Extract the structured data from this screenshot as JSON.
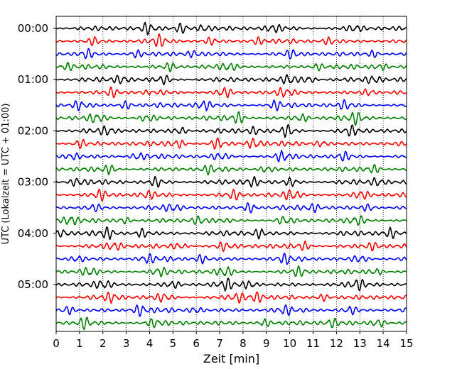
{
  "chart_data": {
    "type": "line",
    "title": "",
    "xlabel": "Zeit  [min]",
    "ylabel": "UTC (Lokalzeit = UTC + 01:00)",
    "xlim": [
      0,
      15
    ],
    "x_ticks": [
      "0",
      "1",
      "2",
      "3",
      "4",
      "5",
      "6",
      "7",
      "8",
      "9",
      "10",
      "11",
      "12",
      "13",
      "14",
      "15"
    ],
    "y_ticks": [
      "00:00",
      "01:00",
      "02:00",
      "03:00",
      "04:00",
      "05:00"
    ],
    "grid": {
      "x": true,
      "y": false,
      "style": "dotted"
    },
    "trace_interval_min": 15,
    "trace_colors": [
      "#000000",
      "#ff0000",
      "#0000ff",
      "#008000"
    ],
    "series": [
      {
        "start": "00:00",
        "color": "#000000",
        "amplitude": 0.42,
        "bursts": [
          {
            "x": 3.9,
            "a": 1.0
          },
          {
            "x": 5.4,
            "a": 1.2
          },
          {
            "x": 6.3,
            "a": 0.9
          },
          {
            "x": 9.3,
            "a": 0.8
          },
          {
            "x": 12.8,
            "a": 0.7
          }
        ]
      },
      {
        "start": "00:15",
        "color": "#ff0000",
        "amplitude": 0.4,
        "bursts": [
          {
            "x": 1.6,
            "a": 0.8
          },
          {
            "x": 4.4,
            "a": 1.1
          },
          {
            "x": 6.6,
            "a": 0.7
          },
          {
            "x": 8.6,
            "a": 0.8
          },
          {
            "x": 11.7,
            "a": 0.8
          }
        ]
      },
      {
        "start": "00:30",
        "color": "#0000ff",
        "amplitude": 0.4,
        "bursts": [
          {
            "x": 1.3,
            "a": 0.9
          },
          {
            "x": 3.4,
            "a": 0.9
          },
          {
            "x": 5.9,
            "a": 0.7
          },
          {
            "x": 10.1,
            "a": 0.8
          },
          {
            "x": 13.6,
            "a": 0.8
          }
        ]
      },
      {
        "start": "00:45",
        "color": "#008000",
        "amplitude": 0.4,
        "bursts": [
          {
            "x": 0.5,
            "a": 0.7
          },
          {
            "x": 4.9,
            "a": 0.9
          },
          {
            "x": 7.4,
            "a": 0.8
          },
          {
            "x": 11.2,
            "a": 0.7
          },
          {
            "x": 13.9,
            "a": 0.8
          }
        ]
      },
      {
        "start": "01:00",
        "color": "#000000",
        "amplitude": 0.42,
        "bursts": [
          {
            "x": 2.8,
            "a": 1.0
          },
          {
            "x": 4.6,
            "a": 0.8
          },
          {
            "x": 10.0,
            "a": 1.1
          },
          {
            "x": 10.8,
            "a": 1.0
          },
          {
            "x": 13.6,
            "a": 0.9
          }
        ]
      },
      {
        "start": "01:15",
        "color": "#ff0000",
        "amplitude": 0.42,
        "bursts": [
          {
            "x": 2.4,
            "a": 1.0
          },
          {
            "x": 7.2,
            "a": 1.1
          },
          {
            "x": 9.8,
            "a": 0.8
          },
          {
            "x": 13.4,
            "a": 0.8
          }
        ]
      },
      {
        "start": "01:30",
        "color": "#0000ff",
        "amplitude": 0.42,
        "bursts": [
          {
            "x": 1.0,
            "a": 1.0
          },
          {
            "x": 3.0,
            "a": 0.9
          },
          {
            "x": 6.3,
            "a": 1.2
          },
          {
            "x": 9.4,
            "a": 0.9
          },
          {
            "x": 12.4,
            "a": 0.8
          }
        ]
      },
      {
        "start": "01:45",
        "color": "#008000",
        "amplitude": 0.42,
        "bursts": [
          {
            "x": 1.7,
            "a": 0.9
          },
          {
            "x": 3.9,
            "a": 0.9
          },
          {
            "x": 7.8,
            "a": 1.0
          },
          {
            "x": 10.5,
            "a": 0.8
          },
          {
            "x": 12.8,
            "a": 1.0
          }
        ]
      },
      {
        "start": "02:00",
        "color": "#000000",
        "amplitude": 0.42,
        "bursts": [
          {
            "x": 2.2,
            "a": 0.8
          },
          {
            "x": 5.3,
            "a": 0.9
          },
          {
            "x": 8.5,
            "a": 0.7
          },
          {
            "x": 9.9,
            "a": 1.1
          },
          {
            "x": 12.6,
            "a": 0.9
          }
        ]
      },
      {
        "start": "02:15",
        "color": "#ff0000",
        "amplitude": 0.42,
        "bursts": [
          {
            "x": 1.0,
            "a": 0.9
          },
          {
            "x": 5.2,
            "a": 1.0
          },
          {
            "x": 6.9,
            "a": 1.1
          },
          {
            "x": 8.5,
            "a": 1.2
          },
          {
            "x": 11.4,
            "a": 0.8
          }
        ]
      },
      {
        "start": "02:30",
        "color": "#0000ff",
        "amplitude": 0.42,
        "bursts": [
          {
            "x": 0.7,
            "a": 0.8
          },
          {
            "x": 3.5,
            "a": 0.9
          },
          {
            "x": 7.0,
            "a": 0.8
          },
          {
            "x": 9.7,
            "a": 1.0
          },
          {
            "x": 12.3,
            "a": 0.8
          }
        ]
      },
      {
        "start": "02:45",
        "color": "#008000",
        "amplitude": 0.4,
        "bursts": [
          {
            "x": 2.3,
            "a": 0.9
          },
          {
            "x": 6.5,
            "a": 0.8
          },
          {
            "x": 9.0,
            "a": 0.9
          },
          {
            "x": 13.6,
            "a": 0.9
          }
        ]
      },
      {
        "start": "03:00",
        "color": "#000000",
        "amplitude": 0.42,
        "bursts": [
          {
            "x": 0.9,
            "a": 0.9
          },
          {
            "x": 4.3,
            "a": 0.9
          },
          {
            "x": 8.4,
            "a": 1.1
          },
          {
            "x": 10.1,
            "a": 0.8
          },
          {
            "x": 13.8,
            "a": 0.9
          }
        ]
      },
      {
        "start": "03:15",
        "color": "#ff0000",
        "amplitude": 0.42,
        "bursts": [
          {
            "x": 1.9,
            "a": 1.0
          },
          {
            "x": 3.9,
            "a": 0.8
          },
          {
            "x": 7.6,
            "a": 0.9
          },
          {
            "x": 10.1,
            "a": 1.1
          },
          {
            "x": 13.1,
            "a": 1.0
          }
        ]
      },
      {
        "start": "03:30",
        "color": "#0000ff",
        "amplitude": 0.42,
        "bursts": [
          {
            "x": 1.6,
            "a": 0.8
          },
          {
            "x": 5.0,
            "a": 0.8
          },
          {
            "x": 8.3,
            "a": 1.1
          },
          {
            "x": 11.0,
            "a": 0.8
          },
          {
            "x": 13.4,
            "a": 0.8
          }
        ]
      },
      {
        "start": "03:45",
        "color": "#008000",
        "amplitude": 0.42,
        "bursts": [
          {
            "x": 0.6,
            "a": 1.2
          },
          {
            "x": 2.9,
            "a": 0.8
          },
          {
            "x": 6.1,
            "a": 0.8
          },
          {
            "x": 9.8,
            "a": 0.9
          },
          {
            "x": 12.9,
            "a": 0.8
          }
        ]
      },
      {
        "start": "04:00",
        "color": "#000000",
        "amplitude": 0.42,
        "bursts": [
          {
            "x": 0.3,
            "a": 0.9
          },
          {
            "x": 2.2,
            "a": 1.0
          },
          {
            "x": 3.7,
            "a": 0.9
          },
          {
            "x": 8.7,
            "a": 1.0
          },
          {
            "x": 14.3,
            "a": 1.1
          }
        ]
      },
      {
        "start": "04:15",
        "color": "#ff0000",
        "amplitude": 0.42,
        "bursts": [
          {
            "x": 2.5,
            "a": 0.9
          },
          {
            "x": 5.3,
            "a": 0.8
          },
          {
            "x": 7.2,
            "a": 0.8
          },
          {
            "x": 10.6,
            "a": 0.8
          },
          {
            "x": 13.6,
            "a": 0.8
          }
        ]
      },
      {
        "start": "04:30",
        "color": "#0000ff",
        "amplitude": 0.42,
        "bursts": [
          {
            "x": 0.9,
            "a": 0.8
          },
          {
            "x": 3.9,
            "a": 0.9
          },
          {
            "x": 6.2,
            "a": 0.9
          },
          {
            "x": 9.8,
            "a": 0.8
          },
          {
            "x": 13.0,
            "a": 0.8
          }
        ]
      },
      {
        "start": "04:45",
        "color": "#008000",
        "amplitude": 0.42,
        "bursts": [
          {
            "x": 1.4,
            "a": 1.0
          },
          {
            "x": 4.4,
            "a": 0.9
          },
          {
            "x": 7.2,
            "a": 1.1
          },
          {
            "x": 10.4,
            "a": 0.9
          },
          {
            "x": 13.7,
            "a": 0.8
          }
        ]
      },
      {
        "start": "05:00",
        "color": "#000000",
        "amplitude": 0.42,
        "bursts": [
          {
            "x": 2.0,
            "a": 0.8
          },
          {
            "x": 5.0,
            "a": 0.8
          },
          {
            "x": 7.3,
            "a": 1.0
          },
          {
            "x": 8.3,
            "a": 0.8
          },
          {
            "x": 12.9,
            "a": 1.0
          }
        ]
      },
      {
        "start": "05:15",
        "color": "#ff0000",
        "amplitude": 0.42,
        "bursts": [
          {
            "x": 2.4,
            "a": 1.0
          },
          {
            "x": 4.6,
            "a": 0.9
          },
          {
            "x": 7.8,
            "a": 0.9
          },
          {
            "x": 8.6,
            "a": 1.0
          },
          {
            "x": 11.4,
            "a": 0.8
          }
        ]
      },
      {
        "start": "05:30",
        "color": "#0000ff",
        "amplitude": 0.42,
        "bursts": [
          {
            "x": 0.5,
            "a": 1.0
          },
          {
            "x": 3.6,
            "a": 1.1
          },
          {
            "x": 6.0,
            "a": 0.8
          },
          {
            "x": 9.8,
            "a": 0.8
          },
          {
            "x": 12.6,
            "a": 0.8
          }
        ]
      },
      {
        "start": "05:45",
        "color": "#008000",
        "amplitude": 0.42,
        "bursts": [
          {
            "x": 1.2,
            "a": 1.1
          },
          {
            "x": 4.2,
            "a": 0.8
          },
          {
            "x": 8.9,
            "a": 0.9
          },
          {
            "x": 11.8,
            "a": 0.8
          },
          {
            "x": 13.8,
            "a": 1.1
          }
        ]
      }
    ]
  }
}
